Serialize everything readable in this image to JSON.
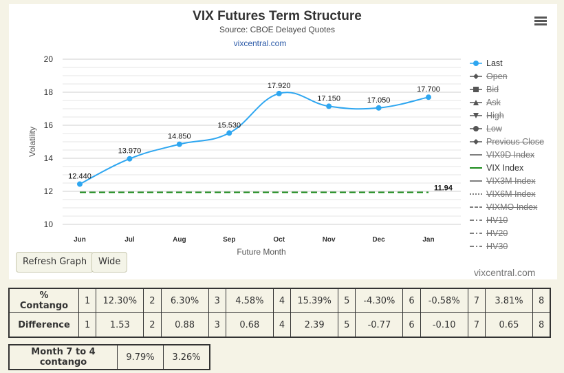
{
  "chart": {
    "title": "VIX Futures Term Structure",
    "subtitle": "Source: CBOE Delayed Quotes",
    "link": "vixcentral.com",
    "credit": "vixcentral.com"
  },
  "chart_data": {
    "type": "line",
    "title": "VIX Futures Term Structure",
    "subtitle": "Source: CBOE Delayed Quotes",
    "xlabel": "Future Month",
    "ylabel": "Volatility",
    "categories": [
      "Jun",
      "Jul",
      "Aug",
      "Sep",
      "Oct",
      "Nov",
      "Dec",
      "Jan"
    ],
    "ylim": [
      10,
      20
    ],
    "yticks": [
      "10",
      "12",
      "14",
      "16",
      "18",
      "20"
    ],
    "grid": true,
    "legend_position": "right",
    "series": [
      {
        "name": "Last",
        "values": [
          12.44,
          13.97,
          14.85,
          15.53,
          17.92,
          17.15,
          17.05,
          17.7
        ],
        "labels": [
          "12.440",
          "13.970",
          "14.850",
          "15.530",
          "17.920",
          "17.150",
          "17.050",
          "17.700"
        ],
        "color": "#2ea6f0",
        "style": "smooth"
      },
      {
        "name": "VIX Index",
        "value": 11.94,
        "label": "11.94",
        "color": "#1a8a1a",
        "style": "dashed"
      }
    ]
  },
  "legend": [
    {
      "name": "Last",
      "on": true,
      "icon": "circle",
      "color": "#2ea6f0"
    },
    {
      "name": "Open",
      "on": false,
      "icon": "diamond",
      "color": "#555"
    },
    {
      "name": "Bid",
      "on": false,
      "icon": "square",
      "color": "#555"
    },
    {
      "name": "Ask",
      "on": false,
      "icon": "triangle",
      "color": "#555"
    },
    {
      "name": "High",
      "on": false,
      "icon": "triangle-down",
      "color": "#555"
    },
    {
      "name": "Low",
      "on": false,
      "icon": "circle",
      "color": "#555"
    },
    {
      "name": "Previous Close",
      "on": false,
      "icon": "diamond",
      "color": "#555"
    },
    {
      "name": "VIX9D Index",
      "on": false,
      "icon": "line",
      "color": "#555"
    },
    {
      "name": "VIX Index",
      "on": true,
      "icon": "line",
      "color": "#1a8a1a"
    },
    {
      "name": "VIX3M Index",
      "on": false,
      "icon": "line",
      "color": "#555"
    },
    {
      "name": "VIX6M Index",
      "on": false,
      "icon": "dotted",
      "color": "#555"
    },
    {
      "name": "VIXMO Index",
      "on": false,
      "icon": "dashed",
      "color": "#555"
    },
    {
      "name": "HV10",
      "on": false,
      "icon": "dashdot",
      "color": "#555"
    },
    {
      "name": "HV20",
      "on": false,
      "icon": "dashdot",
      "color": "#555"
    },
    {
      "name": "HV30",
      "on": false,
      "icon": "dashdot",
      "color": "#555"
    }
  ],
  "buttons": {
    "refresh": "Refresh Graph",
    "wide": "Wide"
  },
  "table1": [
    [
      "% Contango",
      "1",
      "12.30%",
      "2",
      "6.30%",
      "3",
      "4.58%",
      "4",
      "15.39%",
      "5",
      "-4.30%",
      "6",
      "-0.58%",
      "7",
      "3.81%",
      "8"
    ],
    [
      "Difference",
      "1",
      "1.53",
      "2",
      "0.88",
      "3",
      "0.68",
      "4",
      "2.39",
      "5",
      "-0.77",
      "6",
      "-0.10",
      "7",
      "0.65",
      "8"
    ]
  ],
  "table2": [
    [
      "Month 7 to 4 contango",
      "9.79%",
      "3.26%"
    ]
  ]
}
